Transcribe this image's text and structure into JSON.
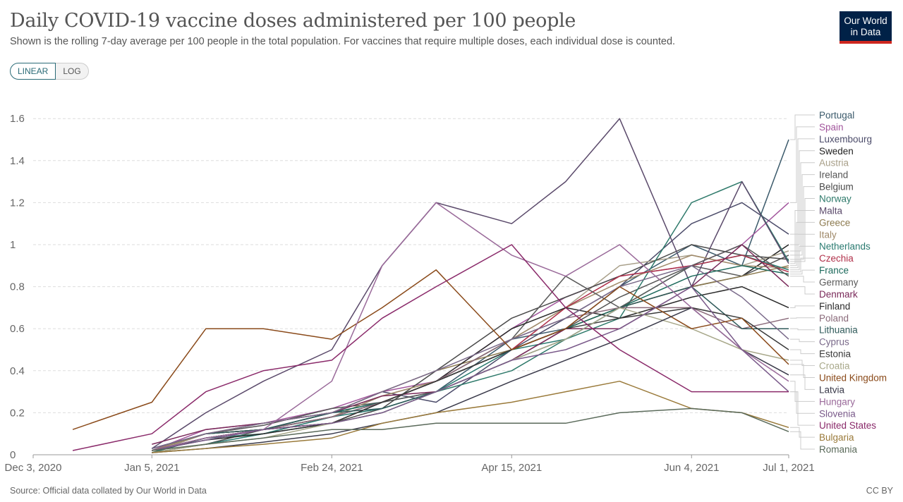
{
  "header": {
    "title": "Daily COVID-19 vaccine doses administered per 100 people",
    "subtitle": "Shown is the rolling 7-day average per 100 people in the total population. For vaccines that require multiple doses, each individual dose is counted.",
    "logo": "Our World in Data"
  },
  "scale_toggle": {
    "linear": "LINEAR",
    "log": "LOG",
    "selected": "LINEAR"
  },
  "footer": {
    "source": "Source: Official data collated by Our World in Data",
    "license": "CC BY"
  },
  "chart_data": {
    "type": "line",
    "title": "Daily COVID-19 vaccine doses administered per 100 people",
    "ylim": [
      0,
      1.7
    ],
    "yticks": [
      "0",
      "0.2",
      "0.4",
      "0.6",
      "0.8",
      "1",
      "1.2",
      "1.4",
      "1.6"
    ],
    "xticks": [
      "Dec 3, 2020",
      "Jan 5, 2021",
      "Feb 24, 2021",
      "Apr 15, 2021",
      "Jun 4, 2021",
      "Jul 1, 2021"
    ],
    "xrange": [
      "2020-12-03",
      "2021-07-01"
    ],
    "grid": "horizontal dashed",
    "legend": "right (line labels)",
    "x": [
      "2020-12-14",
      "2021-01-05",
      "2021-01-20",
      "2021-02-05",
      "2021-02-24",
      "2021-03-10",
      "2021-03-25",
      "2021-04-15",
      "2021-04-30",
      "2021-05-15",
      "2021-06-04",
      "2021-06-18",
      "2021-07-01"
    ],
    "series": [
      {
        "name": "Portugal",
        "color": "#3b5a6b",
        "values": [
          null,
          0.03,
          0.1,
          0.12,
          0.2,
          0.25,
          0.3,
          0.55,
          0.6,
          0.8,
          1.0,
          0.9,
          1.5
        ]
      },
      {
        "name": "Spain",
        "color": "#a2559c",
        "values": [
          null,
          0.02,
          0.12,
          0.15,
          0.22,
          0.3,
          0.35,
          0.6,
          0.75,
          0.85,
          0.9,
          1.0,
          1.2
        ]
      },
      {
        "name": "Luxembourg",
        "color": "#4c4c6a",
        "values": [
          null,
          0.02,
          0.08,
          0.12,
          0.2,
          0.3,
          0.25,
          0.5,
          0.65,
          0.8,
          1.1,
          1.2,
          1.05
        ]
      },
      {
        "name": "Sweden",
        "color": "#222222",
        "values": [
          null,
          0.02,
          0.1,
          0.12,
          0.18,
          0.25,
          0.35,
          0.5,
          0.6,
          0.7,
          0.8,
          0.85,
          1.0
        ]
      },
      {
        "name": "Austria",
        "color": "#a9a08a",
        "values": [
          null,
          0.01,
          0.1,
          0.12,
          0.2,
          0.28,
          0.35,
          0.55,
          0.7,
          0.9,
          0.95,
          0.9,
          0.97
        ]
      },
      {
        "name": "Ireland",
        "color": "#555555",
        "values": [
          null,
          0.02,
          0.1,
          0.14,
          0.22,
          0.25,
          0.3,
          0.45,
          0.6,
          0.75,
          0.9,
          0.85,
          0.95
        ]
      },
      {
        "name": "Belgium",
        "color": "#4a4a4a",
        "values": [
          null,
          0.01,
          0.05,
          0.12,
          0.15,
          0.22,
          0.4,
          0.65,
          0.75,
          0.85,
          1.0,
          0.95,
          0.93
        ]
      },
      {
        "name": "Norway",
        "color": "#2f7a6b",
        "values": [
          null,
          0.02,
          0.08,
          0.1,
          0.15,
          0.2,
          0.3,
          0.4,
          0.55,
          0.65,
          1.2,
          1.3,
          0.92
        ]
      },
      {
        "name": "Malta",
        "color": "#5b4a6b",
        "values": [
          null,
          0.03,
          0.2,
          0.35,
          0.5,
          0.9,
          1.2,
          1.1,
          1.3,
          1.6,
          0.8,
          1.3,
          0.91
        ]
      },
      {
        "name": "Greece",
        "color": "#8c7a4f",
        "values": [
          null,
          0.02,
          0.1,
          0.15,
          0.2,
          0.3,
          0.4,
          0.5,
          0.6,
          0.7,
          0.8,
          0.85,
          0.9
        ]
      },
      {
        "name": "Italy",
        "color": "#a08a6a",
        "values": [
          null,
          0.02,
          0.1,
          0.12,
          0.18,
          0.28,
          0.35,
          0.55,
          0.7,
          0.82,
          0.95,
          0.9,
          0.89
        ]
      },
      {
        "name": "Netherlands",
        "color": "#2a7a70",
        "values": [
          null,
          null,
          0.05,
          0.1,
          0.18,
          0.22,
          0.3,
          0.5,
          0.55,
          0.7,
          0.9,
          0.95,
          0.88
        ]
      },
      {
        "name": "Czechia",
        "color": "#b0304a",
        "values": [
          null,
          0.02,
          0.08,
          0.12,
          0.15,
          0.25,
          0.35,
          0.5,
          0.7,
          0.85,
          0.9,
          0.95,
          0.87
        ]
      },
      {
        "name": "France",
        "color": "#1d6a5c",
        "values": [
          null,
          0.01,
          0.08,
          0.12,
          0.2,
          0.25,
          0.35,
          0.5,
          0.6,
          0.7,
          0.85,
          0.9,
          0.86
        ]
      },
      {
        "name": "Germany",
        "color": "#5a5a5a",
        "values": [
          null,
          0.03,
          0.1,
          0.12,
          0.18,
          0.25,
          0.35,
          0.55,
          0.85,
          0.7,
          0.9,
          1.0,
          0.85
        ]
      },
      {
        "name": "Denmark",
        "color": "#7a2a5a",
        "values": [
          null,
          0.05,
          0.12,
          0.15,
          0.2,
          0.28,
          0.3,
          0.45,
          0.6,
          0.6,
          0.8,
          1.0,
          0.8
        ]
      },
      {
        "name": "Finland",
        "color": "#2b2b2b",
        "values": [
          null,
          0.02,
          0.07,
          0.1,
          0.15,
          0.25,
          0.35,
          0.6,
          0.7,
          0.65,
          0.75,
          0.8,
          0.7
        ]
      },
      {
        "name": "Poland",
        "color": "#8a6a7a",
        "values": [
          null,
          0.02,
          0.08,
          0.12,
          0.18,
          0.25,
          0.35,
          0.55,
          0.65,
          0.7,
          0.7,
          0.6,
          0.65
        ]
      },
      {
        "name": "Lithuania",
        "color": "#2f5a5a",
        "values": [
          null,
          0.03,
          0.1,
          0.12,
          0.2,
          0.22,
          0.3,
          0.45,
          0.55,
          0.7,
          0.8,
          0.6,
          0.6
        ]
      },
      {
        "name": "Cyprus",
        "color": "#7a6a8a",
        "values": [
          null,
          0.03,
          0.1,
          0.15,
          0.2,
          0.3,
          0.4,
          0.55,
          0.65,
          0.8,
          0.9,
          0.75,
          0.55
        ]
      },
      {
        "name": "Estonia",
        "color": "#3a3a3a",
        "values": [
          null,
          0.02,
          0.08,
          0.12,
          0.15,
          0.25,
          0.35,
          0.5,
          0.6,
          0.65,
          0.7,
          0.65,
          0.5
        ]
      },
      {
        "name": "Croatia",
        "color": "#a8a88a",
        "values": [
          null,
          0.01,
          0.05,
          0.08,
          0.15,
          0.2,
          0.3,
          0.45,
          0.55,
          0.7,
          0.6,
          0.5,
          0.45
        ]
      },
      {
        "name": "United Kingdom",
        "color": "#8a4a1a",
        "values": [
          0.12,
          0.25,
          0.6,
          0.6,
          0.55,
          0.7,
          0.88,
          0.5,
          0.6,
          0.8,
          0.6,
          0.65,
          0.43
        ]
      },
      {
        "name": "Latvia",
        "color": "#3a3a4a",
        "values": [
          null,
          0.01,
          0.03,
          0.06,
          0.1,
          0.15,
          0.2,
          0.35,
          0.45,
          0.55,
          0.7,
          0.5,
          0.38
        ]
      },
      {
        "name": "Hungary",
        "color": "#9a6a9a",
        "values": [
          null,
          0.02,
          0.08,
          0.12,
          0.35,
          0.9,
          1.2,
          0.95,
          0.85,
          1.0,
          0.7,
          0.5,
          0.35
        ]
      },
      {
        "name": "Slovenia",
        "color": "#7a5a8a",
        "values": [
          null,
          0.02,
          0.07,
          0.12,
          0.15,
          0.2,
          0.3,
          0.45,
          0.5,
          0.6,
          0.8,
          0.5,
          0.3
        ]
      },
      {
        "name": "United States",
        "color": "#8a2a6a",
        "values": [
          0.02,
          0.1,
          0.3,
          0.4,
          0.45,
          0.65,
          0.8,
          1.0,
          0.7,
          0.5,
          0.3,
          0.3,
          0.3
        ]
      },
      {
        "name": "Bulgaria",
        "color": "#9a7a3a",
        "values": [
          null,
          0.01,
          0.03,
          0.05,
          0.08,
          0.15,
          0.2,
          0.25,
          0.3,
          0.35,
          0.22,
          0.2,
          0.13
        ]
      },
      {
        "name": "Romania",
        "color": "#5a6a5a",
        "values": [
          null,
          0.02,
          0.05,
          0.08,
          0.12,
          0.12,
          0.15,
          0.15,
          0.15,
          0.2,
          0.22,
          0.2,
          0.11
        ]
      }
    ]
  }
}
